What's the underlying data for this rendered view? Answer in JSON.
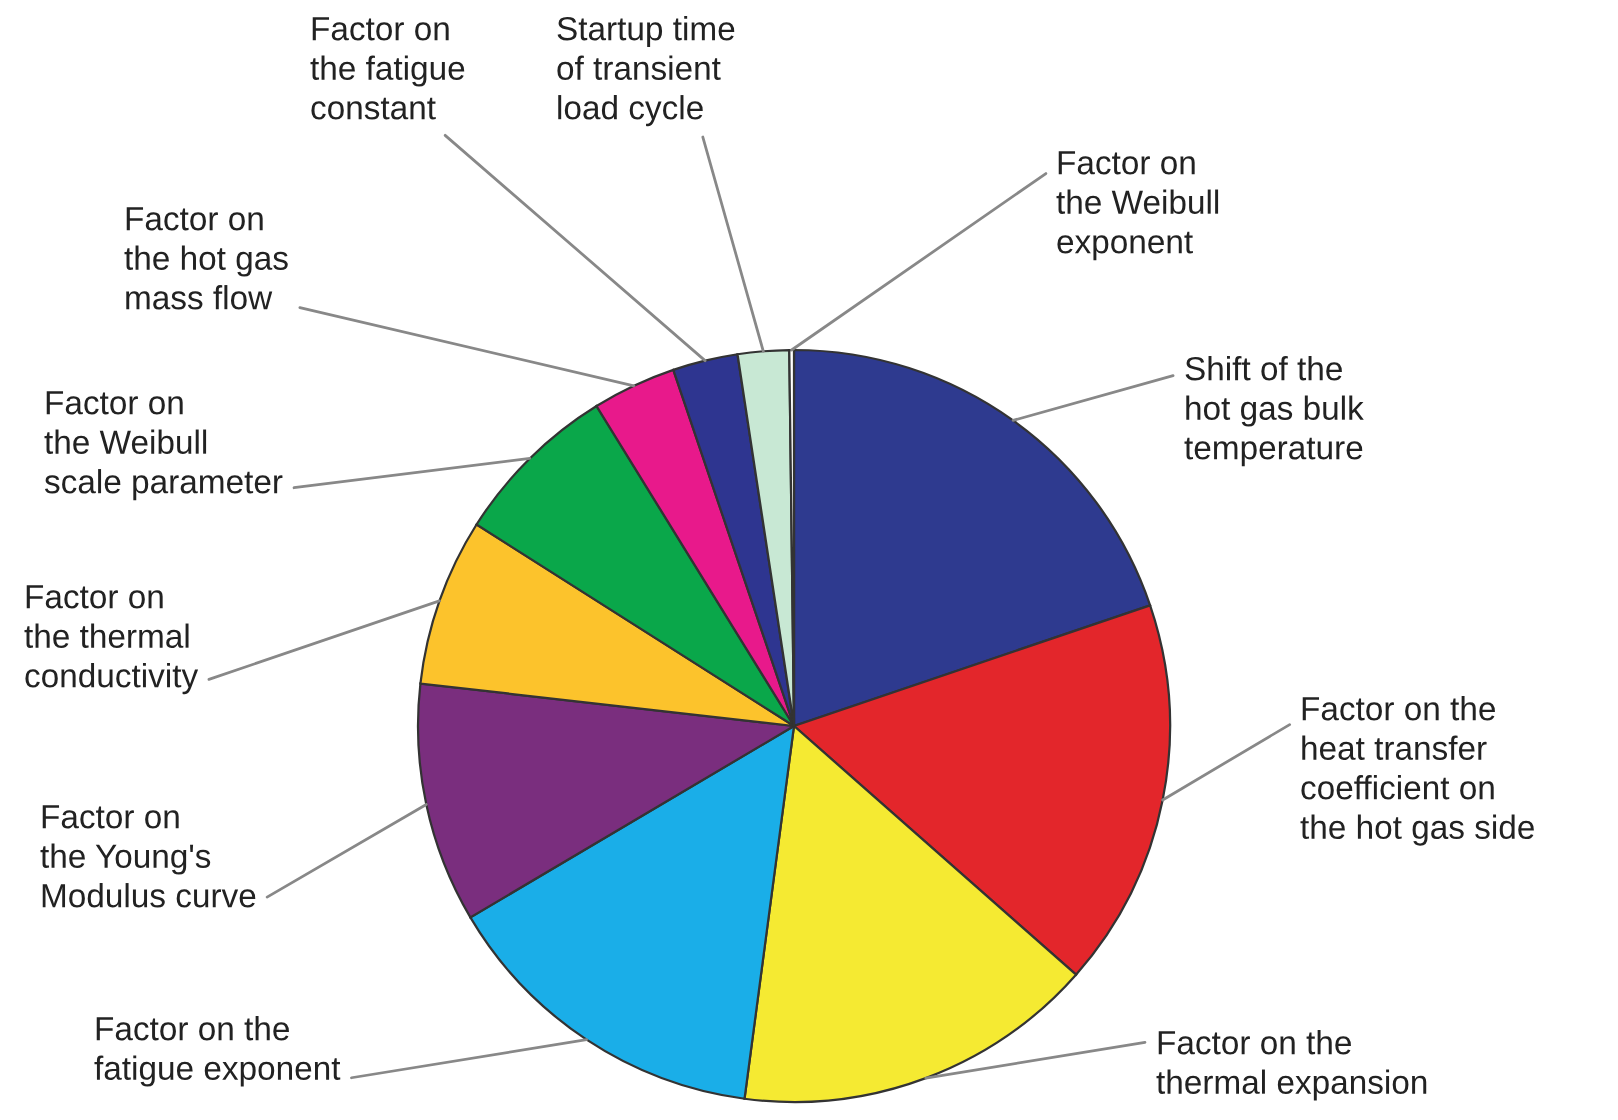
{
  "chart_data": {
    "type": "pie",
    "categories": [
      "Shift of the\nhot gas bulk\ntemperature",
      "Factor on the\nheat transfer\ncoefficient on\nthe hot gas side",
      "Factor on the\nthermal expansion",
      "Factor on the\nfatigue exponent",
      "Factor on\nthe Young's\nModulus curve",
      "Factor on\nthe thermal\nconductivity",
      "Factor on\nthe Weibull\nscale parameter",
      "Factor on\nthe hot gas\nmass flow",
      "Factor on\nthe fatigue\nconstant",
      "Startup time\nof transient\nload cycle",
      "Factor on\nthe Weibull\nexponent"
    ],
    "values": [
      19.8,
      16.7,
      15.6,
      14.4,
      10.3,
      7.2,
      7.2,
      3.6,
      2.8,
      2.2,
      0.2
    ],
    "colors": [
      "#2e3a8f",
      "#e3262b",
      "#f5ea32",
      "#1aaee8",
      "#7a2e7e",
      "#fcc32c",
      "#0aa74a",
      "#e8198b",
      "#2e3590",
      "#c8e8d4",
      "#ffffff"
    ],
    "legend": false
  }
}
